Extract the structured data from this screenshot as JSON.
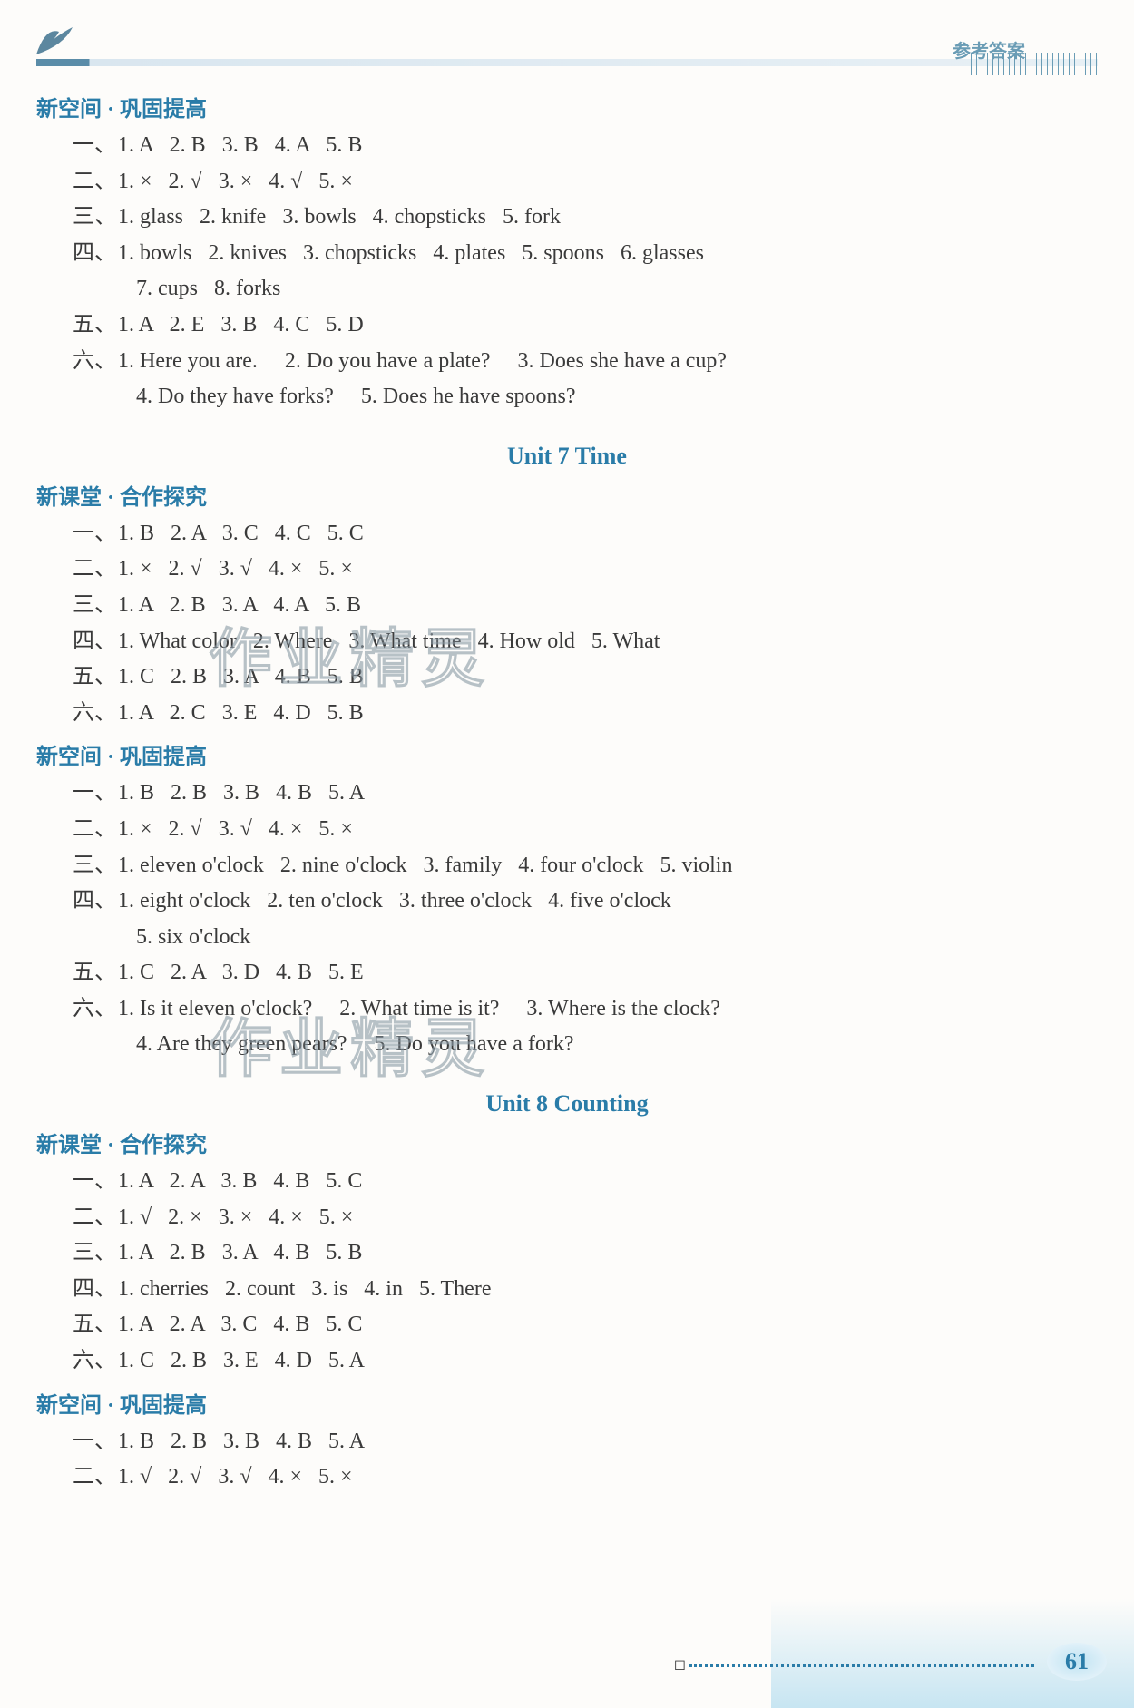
{
  "header": {
    "label": "参考答案",
    "page_number": "61"
  },
  "colors": {
    "heading_color": "#2a7ca8",
    "body_text": "#3a3a3a",
    "header_accent": "#5a8ca8"
  },
  "typography": {
    "body_fontsize": 24,
    "heading_fontsize": 24,
    "unit_title_fontsize": 26
  },
  "watermark_text": "作业精灵",
  "sections": [
    {
      "heading": "新空间 · 巩固提高",
      "lines": [
        {
          "prefix": "一、",
          "text": "1. A   2. B   3. B   4. A   5. B"
        },
        {
          "prefix": "二、",
          "text": "1. ×   2. √   3. ×   4. √   5. ×"
        },
        {
          "prefix": "三、",
          "text": "1. glass   2. knife   3. bowls   4. chopsticks   5. fork"
        },
        {
          "prefix": "四、",
          "text": "1. bowls   2. knives   3. chopsticks   4. plates   5. spoons   6. glasses"
        },
        {
          "prefix": "",
          "text": "7. cups   8. forks",
          "cont": true
        },
        {
          "prefix": "五、",
          "text": "1. A   2. E   3. B   4. C   5. D"
        },
        {
          "prefix": "六、",
          "text": "1. Here you are.     2. Do you have a plate?     3. Does she have a cup?"
        },
        {
          "prefix": "",
          "text": "4. Do they have forks?     5. Does he have spoons?",
          "cont": true
        }
      ]
    },
    {
      "unit_title": "Unit 7    Time"
    },
    {
      "heading": "新课堂 · 合作探究",
      "lines": [
        {
          "prefix": "一、",
          "text": "1. B   2. A   3. C   4. C   5. C"
        },
        {
          "prefix": "二、",
          "text": "1. ×   2. √   3. √   4. ×   5. ×"
        },
        {
          "prefix": "三、",
          "text": "1. A   2. B   3. A   4. A   5. B"
        },
        {
          "prefix": "四、",
          "text": "1. What color   2. Where   3. What time   4. How old   5. What"
        },
        {
          "prefix": "五、",
          "text": "1. C   2. B   3. A   4. B   5. B"
        },
        {
          "prefix": "六、",
          "text": "1. A   2. C   3. E   4. D   5. B"
        }
      ]
    },
    {
      "heading": "新空间 · 巩固提高",
      "lines": [
        {
          "prefix": "一、",
          "text": "1. B   2. B   3. B   4. B   5. A"
        },
        {
          "prefix": "二、",
          "text": "1. ×   2. √   3. √   4. ×   5. ×"
        },
        {
          "prefix": "三、",
          "text": "1. eleven o'clock   2. nine o'clock   3. family   4. four o'clock   5. violin"
        },
        {
          "prefix": "四、",
          "text": "1. eight o'clock   2. ten o'clock   3. three o'clock   4. five o'clock"
        },
        {
          "prefix": "",
          "text": "5. six o'clock",
          "cont": true
        },
        {
          "prefix": "五、",
          "text": "1. C   2. A   3. D   4. B   5. E"
        },
        {
          "prefix": "六、",
          "text": "1. Is it eleven o'clock?     2. What time is it?     3. Where is the clock?"
        },
        {
          "prefix": "",
          "text": "4. Are they green pears?     5. Do you have a fork?",
          "cont": true
        }
      ]
    },
    {
      "unit_title": "Unit 8    Counting"
    },
    {
      "heading": "新课堂 · 合作探究",
      "lines": [
        {
          "prefix": "一、",
          "text": "1. A   2. A   3. B   4. B   5. C"
        },
        {
          "prefix": "二、",
          "text": "1. √   2. ×   3. ×   4. ×   5. ×"
        },
        {
          "prefix": "三、",
          "text": "1. A   2. B   3. A   4. B   5. B"
        },
        {
          "prefix": "四、",
          "text": "1. cherries   2. count   3. is   4. in   5. There"
        },
        {
          "prefix": "五、",
          "text": "1. A   2. A   3. C   4. B   5. C"
        },
        {
          "prefix": "六、",
          "text": "1. C   2. B   3. E   4. D   5. A"
        }
      ]
    },
    {
      "heading": "新空间 · 巩固提高",
      "lines": [
        {
          "prefix": "一、",
          "text": "1. B   2. B   3. B   4. B   5. A"
        },
        {
          "prefix": "二、",
          "text": "1. √   2. √   3. √   4. ×   5. ×"
        }
      ]
    }
  ]
}
